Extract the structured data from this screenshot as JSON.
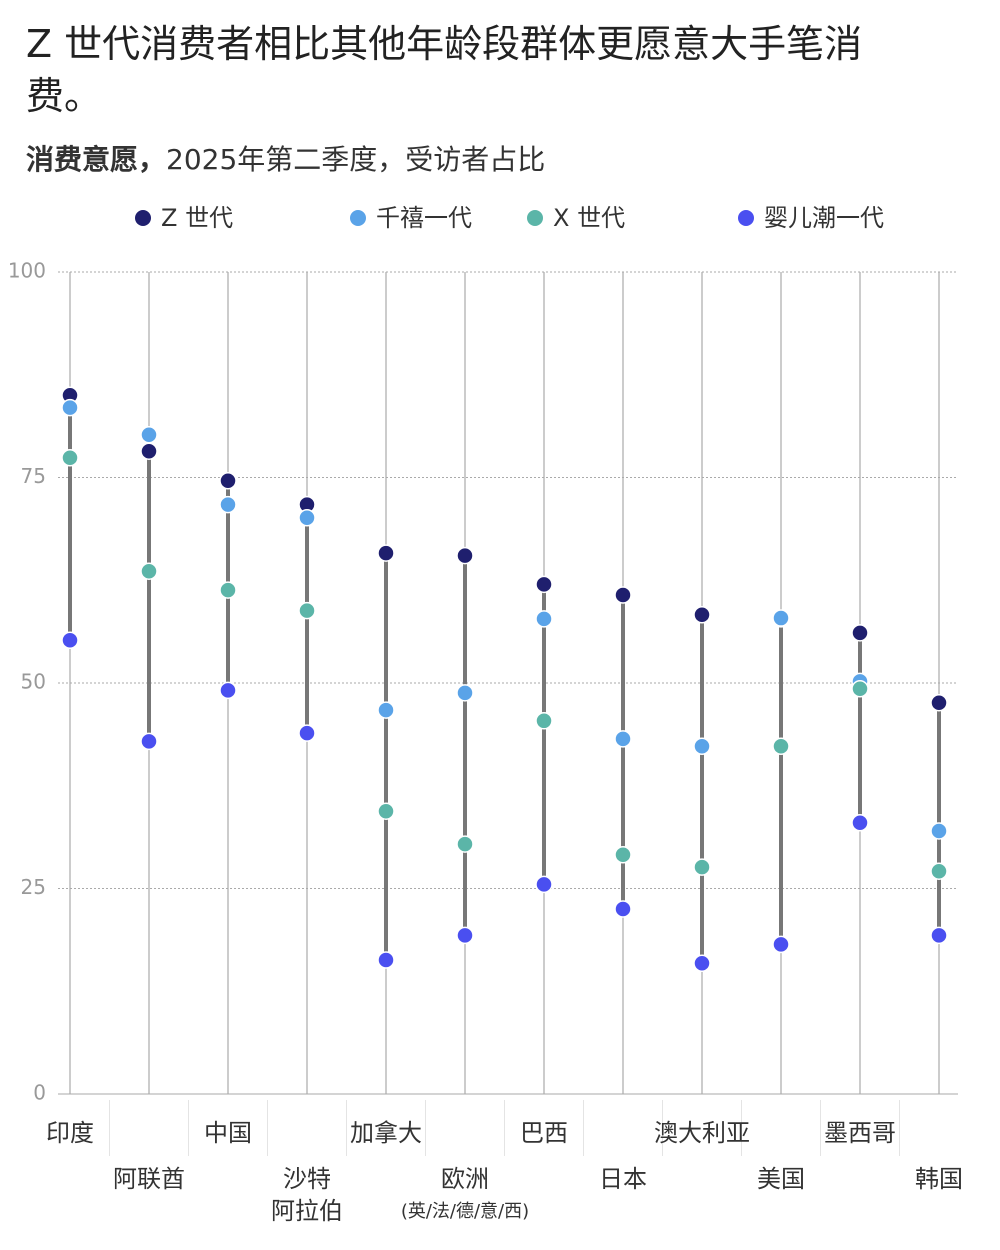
{
  "chart_data": {
    "type": "dot-range",
    "title": "Z 世代消费者相比其他年龄段群体更愿意大手笔消费。",
    "subtitle_bold": "消费意愿，",
    "subtitle": "2025年第二季度，受访者占比",
    "categories": [
      "印度",
      "阿联酋",
      "中国",
      "沙特\n阿拉伯",
      "加拿大",
      "欧洲\n(英/法/德/意/西)",
      "巴西",
      "日本",
      "澳大利亚",
      "美国",
      "墨西哥",
      "韩国"
    ],
    "series": [
      {
        "name": "Z 世代",
        "color": "#1f1f6e",
        "values": [
          85,
          78.2,
          74.6,
          71.7,
          65.8,
          65.5,
          62,
          60.7,
          58.3,
          57.8,
          56.1,
          47.6
        ]
      },
      {
        "name": "千禧一代",
        "color": "#5aa3e8",
        "values": [
          83.5,
          80.2,
          71.7,
          70.1,
          46.7,
          48.8,
          57.8,
          43.2,
          42.3,
          57.9,
          50.2,
          32
        ]
      },
      {
        "name": "X 世代",
        "color": "#5bb5a8",
        "values": [
          77.4,
          63.6,
          61.3,
          58.8,
          34.4,
          30.4,
          45.4,
          29.1,
          27.6,
          42.3,
          49.3,
          27.1
        ]
      },
      {
        "name": "婴儿潮一代",
        "color": "#4a4ff0",
        "values": [
          55.2,
          42.9,
          49.1,
          43.9,
          16.3,
          19.3,
          25.5,
          22.5,
          15.9,
          18.2,
          33,
          19.3
        ]
      }
    ],
    "ylim": [
      0,
      100
    ],
    "yticks": [
      0,
      25,
      50,
      75,
      100
    ],
    "grid": true
  }
}
